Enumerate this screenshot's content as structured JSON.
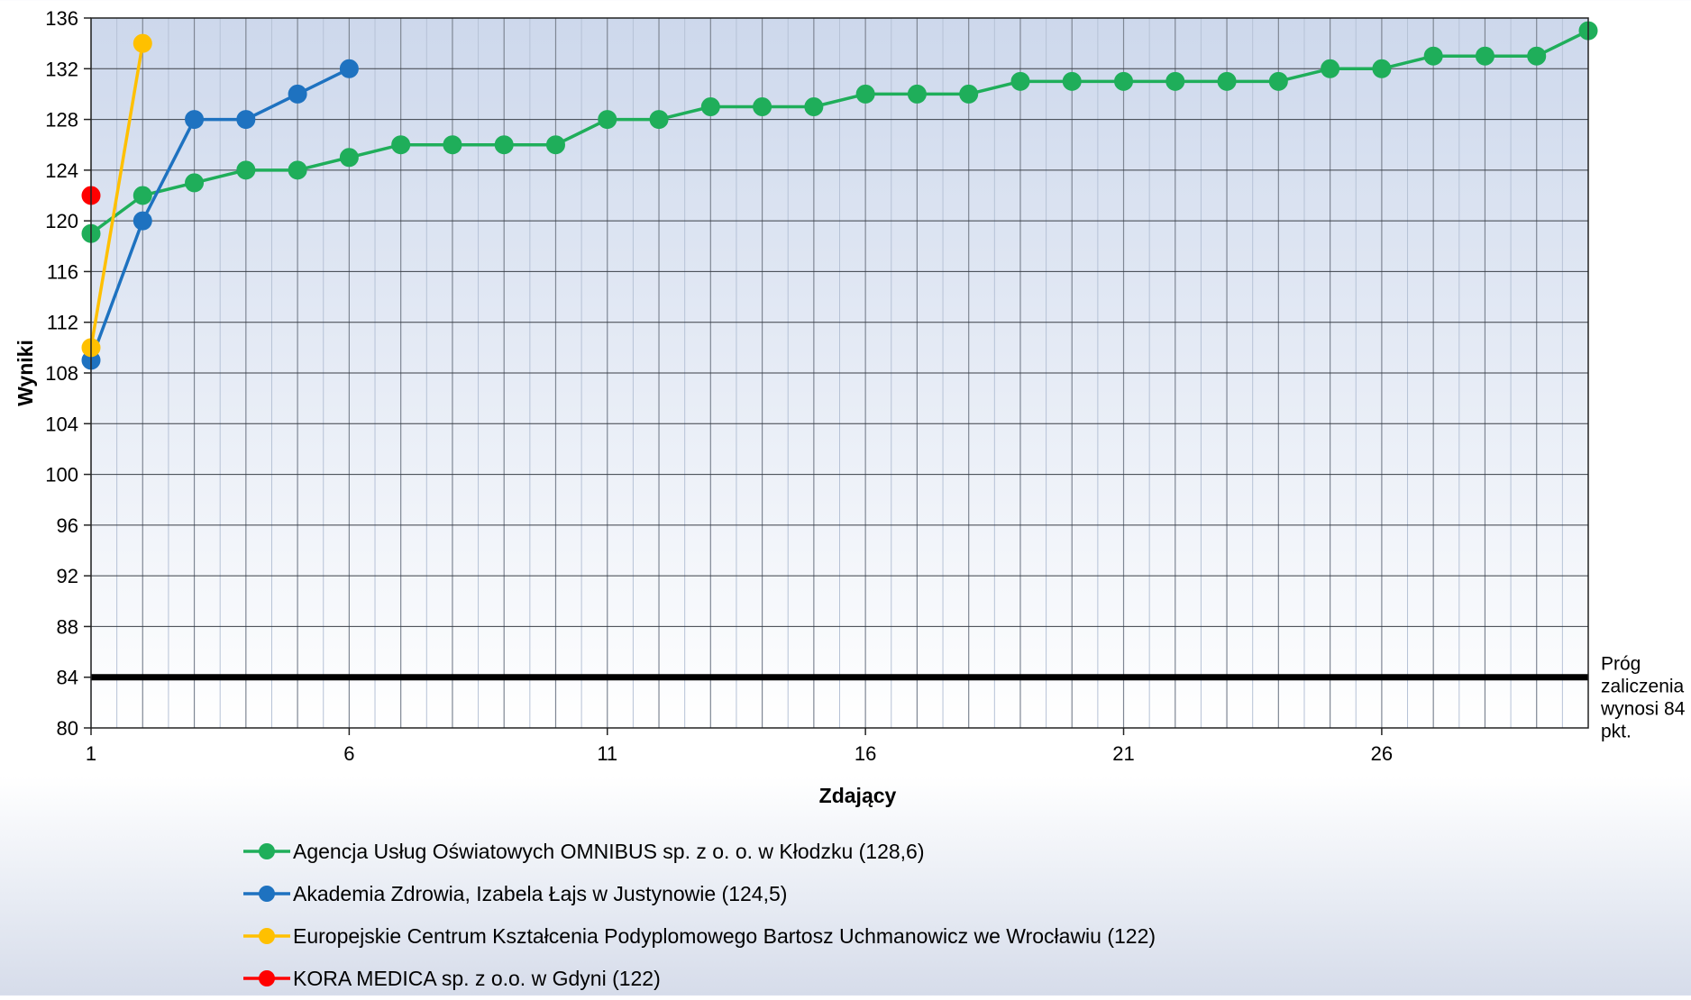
{
  "chart_data": {
    "type": "line",
    "title": "",
    "xlabel": "Zdający",
    "ylabel": "Wyniki",
    "xlim": [
      1,
      30
    ],
    "ylim": [
      80,
      136
    ],
    "ytick_step": 4,
    "x_tick_labels": [
      1,
      6,
      11,
      16,
      21,
      26
    ],
    "grid": true,
    "legend_position": "bottom",
    "threshold": {
      "value": 84,
      "label_lines": [
        "Próg",
        "zaliczenia",
        "wynosi 84",
        "pkt."
      ],
      "color": "#000000"
    },
    "series": [
      {
        "name": "Agencja Usług Oświatowych OMNIBUS sp. z o. o. w Kłodzku (128,6)",
        "color": "#1fae5a",
        "values": [
          119,
          122,
          123,
          124,
          124,
          125,
          126,
          126,
          126,
          126,
          128,
          128,
          129,
          129,
          129,
          130,
          130,
          130,
          131,
          131,
          131,
          131,
          131,
          131,
          132,
          132,
          133,
          133,
          133,
          135
        ]
      },
      {
        "name": "Akademia Zdrowia, Izabela Łajs w Justynowie (124,5)",
        "color": "#1e72c0",
        "values": [
          109,
          120,
          128,
          128,
          130,
          132
        ]
      },
      {
        "name": "Europejskie Centrum Kształcenia Podyplomowego Bartosz Uchmanowicz we Wrocławiu (122)",
        "color": "#ffc000",
        "values": [
          110,
          134
        ]
      },
      {
        "name": "KORA MEDICA sp. z o.o. w Gdyni (122)",
        "color": "#ff0000",
        "values": [
          122
        ]
      }
    ]
  }
}
